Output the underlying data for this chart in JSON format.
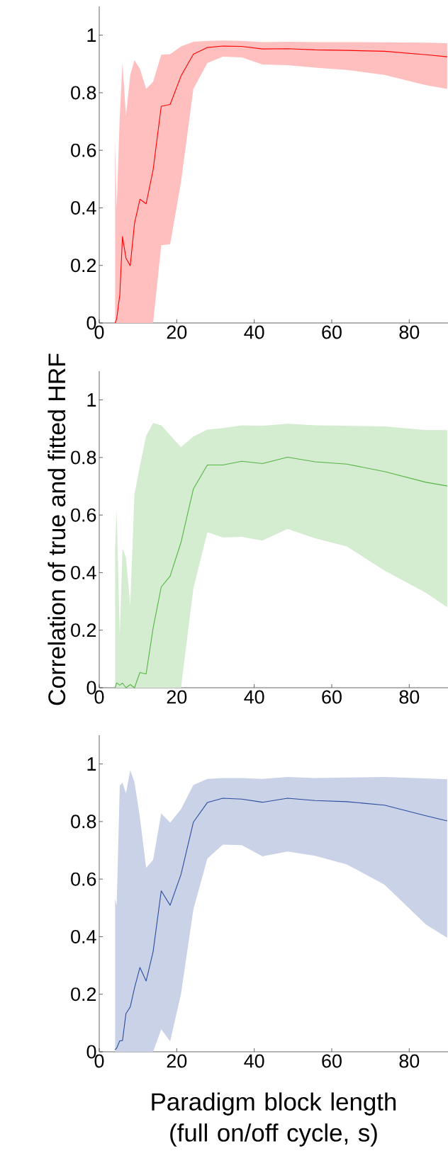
{
  "chart_data": [
    {
      "type": "line",
      "x": [
        4.1,
        4.5,
        5.3,
        6,
        6.9,
        8,
        9.1,
        10.5,
        12.1,
        13.9,
        16,
        18.3,
        21.1,
        24.3,
        27.9,
        31.9,
        36.8,
        42.1,
        48.6,
        55.7,
        63.9,
        73.6,
        84.3,
        89.8
      ],
      "series": [
        {
          "color": "#ff0000",
          "values": [
            0,
            0.015,
            0.097,
            0.3,
            0.225,
            0.199,
            0.346,
            0.43,
            0.414,
            0.532,
            0.753,
            0.759,
            0.858,
            0.934,
            0.957,
            0.962,
            0.961,
            0.952,
            0.953,
            0.949,
            0.947,
            0.944,
            0.932,
            0.925
          ],
          "upper": [
            0.637,
            0.4,
            0.72,
            0.903,
            0.719,
            0.862,
            0.913,
            0.883,
            0.813,
            0.838,
            0.932,
            0.934,
            0.961,
            0.977,
            0.98,
            0.981,
            0.98,
            0.976,
            0.977,
            0.976,
            0.976,
            0.975,
            0.974,
            0.972
          ],
          "lower": [
            0,
            0,
            0,
            0,
            0,
            0,
            0,
            0,
            0,
            0,
            0.27,
            0.274,
            0.49,
            0.813,
            0.903,
            0.925,
            0.923,
            0.898,
            0.896,
            0.887,
            0.879,
            0.862,
            0.826,
            0.813
          ]
        }
      ],
      "xlim": [
        0,
        90
      ],
      "ylim": [
        0,
        1.1
      ],
      "xticks": [
        0,
        20,
        40,
        60,
        80
      ],
      "yticks": [
        0,
        0.2,
        0.4,
        0.6,
        0.8,
        1
      ]
    },
    {
      "type": "line",
      "x": [
        4.1,
        4.5,
        5.3,
        6,
        6.9,
        8,
        9.1,
        10.5,
        12.1,
        13.9,
        16,
        18.3,
        21.1,
        24.3,
        27.9,
        31.9,
        36.8,
        42.1,
        48.6,
        55.7,
        63.9,
        73.6,
        84.3,
        89.8
      ],
      "ylabel": "Correlation of true and fitted HRF",
      "series": [
        {
          "color": "#55b544",
          "values": [
            0,
            0.017,
            0.009,
            0.016,
            0,
            0.011,
            0,
            0.053,
            0.048,
            0.207,
            0.35,
            0.388,
            0.505,
            0.691,
            0.774,
            0.774,
            0.787,
            0.779,
            0.801,
            0.785,
            0.777,
            0.751,
            0.714,
            0.701
          ],
          "upper": [
            0.485,
            0.616,
            0.18,
            0.485,
            0.452,
            0.285,
            0.673,
            0.771,
            0.875,
            0.92,
            0.912,
            0.877,
            0.836,
            0.873,
            0.897,
            0.902,
            0.912,
            0.91,
            0.917,
            0.912,
            0.91,
            0.908,
            0.895,
            0.895
          ],
          "lower": [
            0,
            0,
            0,
            0,
            0,
            0,
            0,
            0,
            0,
            0,
            0,
            0,
            0,
            0.346,
            0.54,
            0.522,
            0.524,
            0.511,
            0.552,
            0.519,
            0.491,
            0.407,
            0.33,
            0.28
          ]
        }
      ],
      "xlim": [
        0,
        90
      ],
      "ylim": [
        0,
        1.1
      ],
      "xticks": [
        0,
        20,
        40,
        60,
        80
      ],
      "yticks": [
        0,
        0.2,
        0.4,
        0.6,
        0.8,
        1
      ]
    },
    {
      "type": "line",
      "x": [
        4.1,
        4.5,
        5.3,
        6,
        6.9,
        8,
        9.1,
        10.5,
        12.1,
        13.9,
        16,
        18.3,
        21.1,
        24.3,
        27.9,
        31.9,
        36.8,
        42.1,
        48.6,
        55.7,
        63.9,
        73.6,
        84.3,
        89.8
      ],
      "xlabel": "Paradigm block length (full on/off cycle, s)",
      "series": [
        {
          "color": "#2b4c9f",
          "values": [
            0.007,
            0.013,
            0.038,
            0.039,
            0.133,
            0.156,
            0.222,
            0.293,
            0.246,
            0.348,
            0.559,
            0.509,
            0.616,
            0.798,
            0.866,
            0.881,
            0.878,
            0.867,
            0.881,
            0.873,
            0.869,
            0.857,
            0.82,
            0.802
          ],
          "upper": [
            0.532,
            0.508,
            0.925,
            0.935,
            0.898,
            0.978,
            0.937,
            0.814,
            0.639,
            0.667,
            0.828,
            0.796,
            0.843,
            0.927,
            0.948,
            0.951,
            0.951,
            0.948,
            0.955,
            0.951,
            0.953,
            0.955,
            0.95,
            0.947
          ],
          "lower": [
            0,
            0,
            0,
            0,
            0,
            0,
            0,
            0,
            0,
            0,
            0.078,
            0.036,
            0.201,
            0.495,
            0.671,
            0.72,
            0.718,
            0.679,
            0.696,
            0.681,
            0.651,
            0.581,
            0.442,
            0.396
          ]
        }
      ],
      "xlim": [
        0,
        90
      ],
      "ylim": [
        0,
        1.1
      ],
      "xticks": [
        0,
        20,
        40,
        60,
        80
      ],
      "yticks": [
        0,
        0.2,
        0.4,
        0.6,
        0.8,
        1
      ]
    }
  ]
}
